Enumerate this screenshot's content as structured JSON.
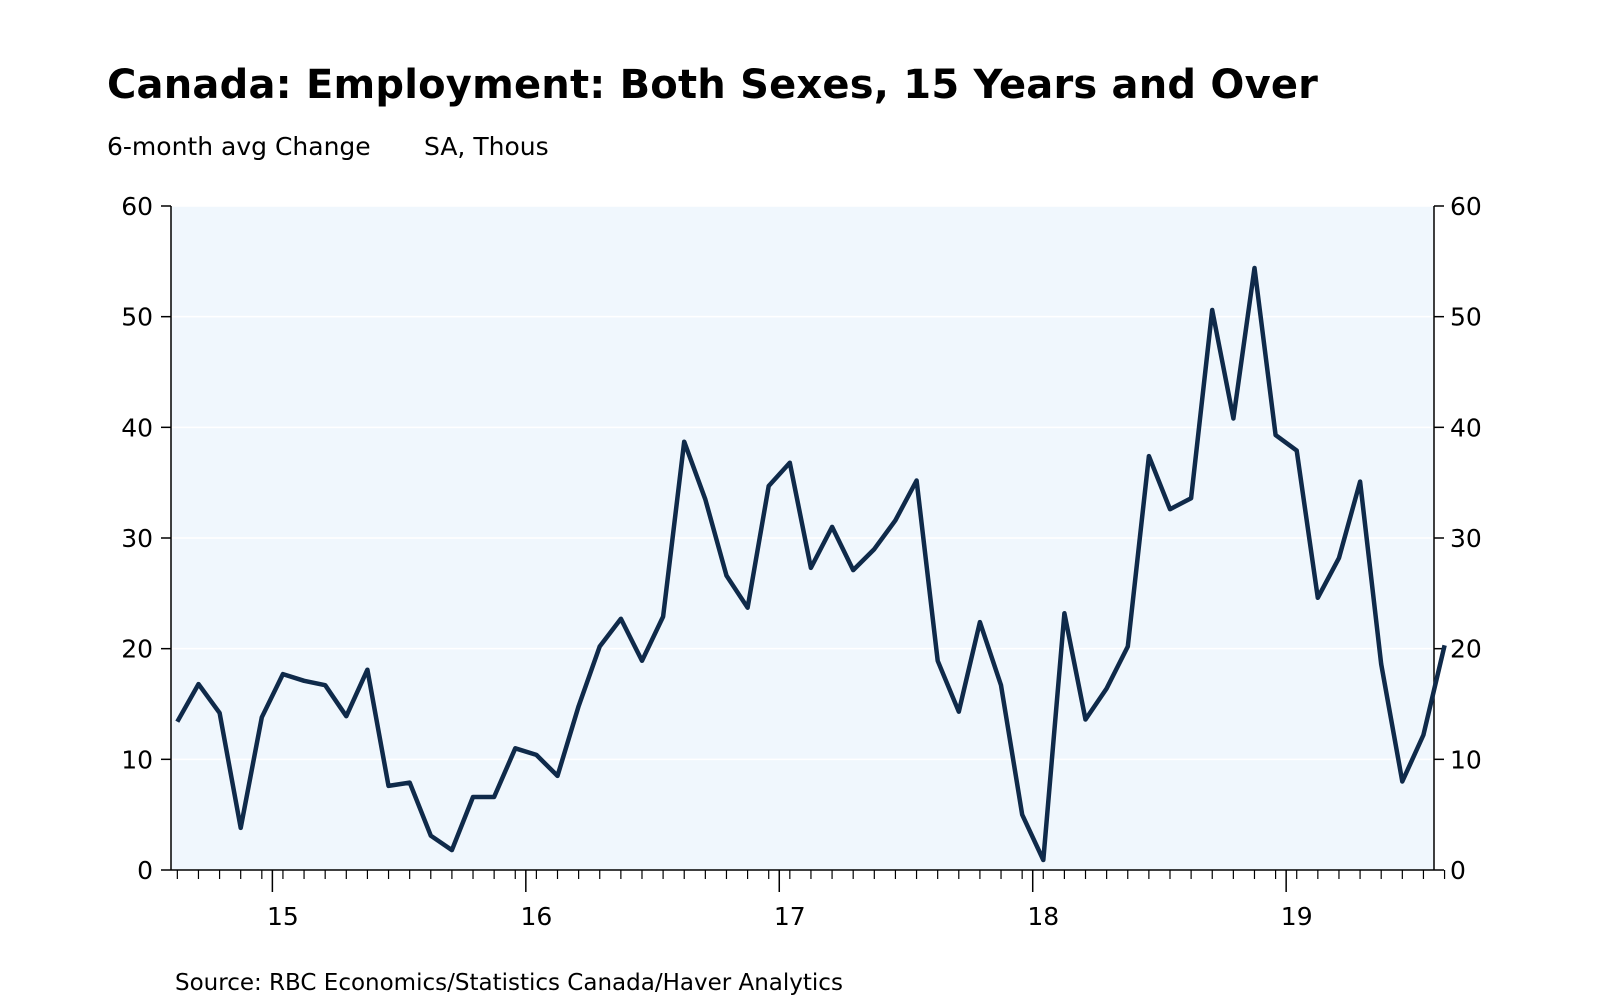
{
  "chart_data": {
    "type": "line",
    "title": "Canada: Employment: Both Sexes, 15 Years and Over",
    "subtitle_left": "6-month avg Change",
    "subtitle_right": "SA, Thous",
    "source": "Source:  RBC Economics/Statistics Canada/Haver Analytics",
    "xlabel": "",
    "ylabel": "",
    "ylim": [
      0,
      60
    ],
    "yticks": [
      0,
      10,
      20,
      30,
      40,
      50,
      60
    ],
    "ytick_labels": [
      "0",
      "10",
      "20",
      "30",
      "40",
      "50",
      "60"
    ],
    "x_start": "2014-08",
    "xlim_months": [
      -0.3,
      59.5
    ],
    "year_labels": [
      {
        "label": "15",
        "month_index": 5
      },
      {
        "label": "16",
        "month_index": 17
      },
      {
        "label": "17",
        "month_index": 29
      },
      {
        "label": "18",
        "month_index": 41
      },
      {
        "label": "19",
        "month_index": 53
      }
    ],
    "year_boundaries": [
      4.5,
      16.5,
      28.5,
      40.5,
      52.5
    ],
    "series": [
      {
        "name": "Employment 6-month avg change",
        "color": "#0f2a4a",
        "values": [
          13.4,
          16.8,
          14.2,
          3.8,
          13.8,
          17.7,
          17.1,
          16.7,
          13.9,
          18.1,
          7.6,
          7.9,
          3.1,
          1.8,
          6.6,
          6.6,
          11.0,
          10.4,
          8.5,
          14.8,
          20.2,
          22.7,
          18.9,
          22.9,
          38.7,
          33.5,
          26.6,
          23.7,
          34.7,
          36.8,
          27.3,
          31.0,
          27.1,
          29.0,
          31.6,
          35.2,
          18.9,
          14.3,
          22.4,
          16.7,
          5.0,
          0.9,
          23.2,
          13.6,
          16.4,
          20.2,
          37.4,
          32.6,
          33.6,
          50.6,
          40.8,
          54.4,
          39.3,
          37.9,
          24.6,
          28.2,
          35.1,
          18.6,
          8.0,
          12.2,
          20.3
        ]
      }
    ],
    "colors": {
      "plot_background": "#f0f7fd",
      "line": "#0f2a4a",
      "gridline": "#ffffff",
      "axis": "#000000"
    }
  }
}
